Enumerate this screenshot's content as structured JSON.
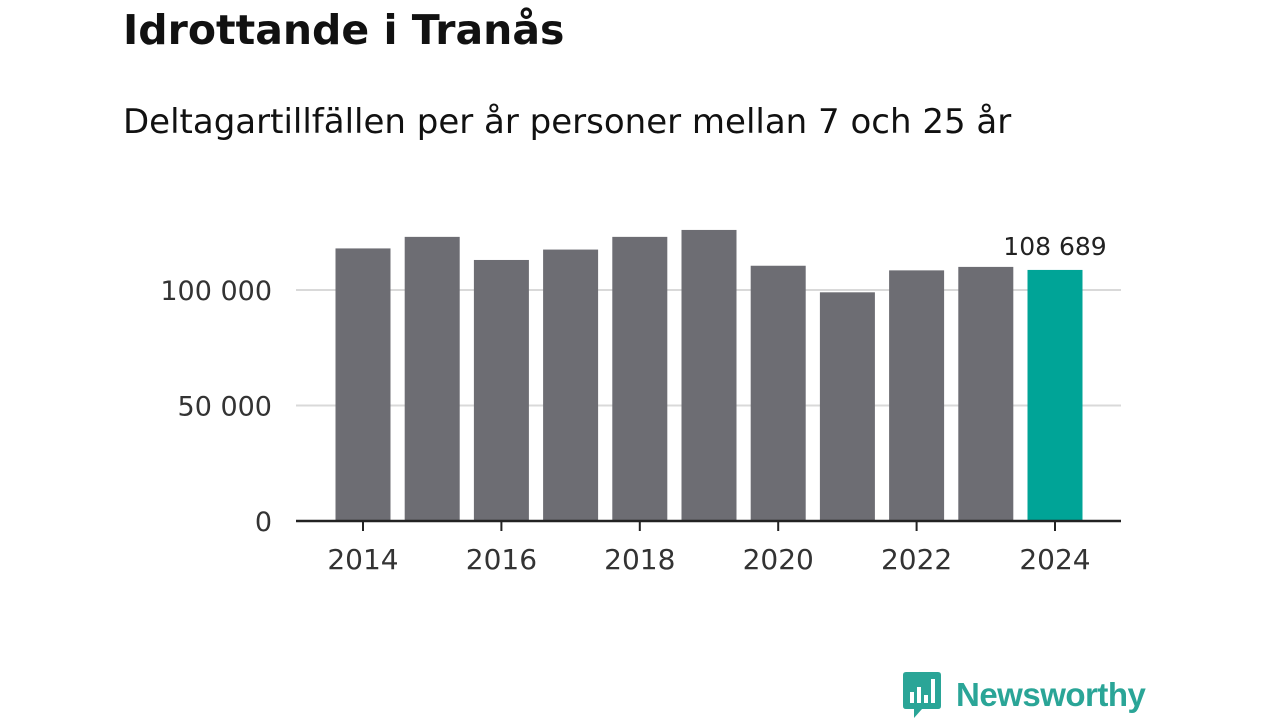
{
  "title": "Idrottande i Tranås",
  "subtitle": "Deltagartillfällen per år personer mellan 7 och 25 år",
  "brand": {
    "name": "Newsworthy"
  },
  "colors": {
    "bar": "#6d6d73",
    "highlight": "#00a497",
    "grid": "#d9d9d9",
    "axis": "#222222",
    "brand": "#2aa597"
  },
  "chart_data": {
    "type": "bar",
    "title": "Idrottande i Tranås",
    "subtitle": "Deltagartillfällen per år personer mellan 7 och 25 år",
    "xlabel": "",
    "ylabel": "",
    "ylim": [
      0,
      125000
    ],
    "grid": true,
    "categories": [
      "2014",
      "2015",
      "2016",
      "2017",
      "2018",
      "2019",
      "2020",
      "2021",
      "2022",
      "2023",
      "2024"
    ],
    "values": [
      118000,
      123000,
      113000,
      117500,
      123000,
      126000,
      110500,
      99000,
      108500,
      110000,
      108689
    ],
    "highlight_index": 10,
    "yticks": [
      0,
      50000,
      100000
    ],
    "ytick_labels": [
      "0",
      "50 000",
      "100 000"
    ],
    "xtick_labels": [
      "2014",
      "2016",
      "2018",
      "2020",
      "2022",
      "2024"
    ],
    "data_labels": [
      {
        "index": 10,
        "text": "108 689"
      }
    ]
  }
}
